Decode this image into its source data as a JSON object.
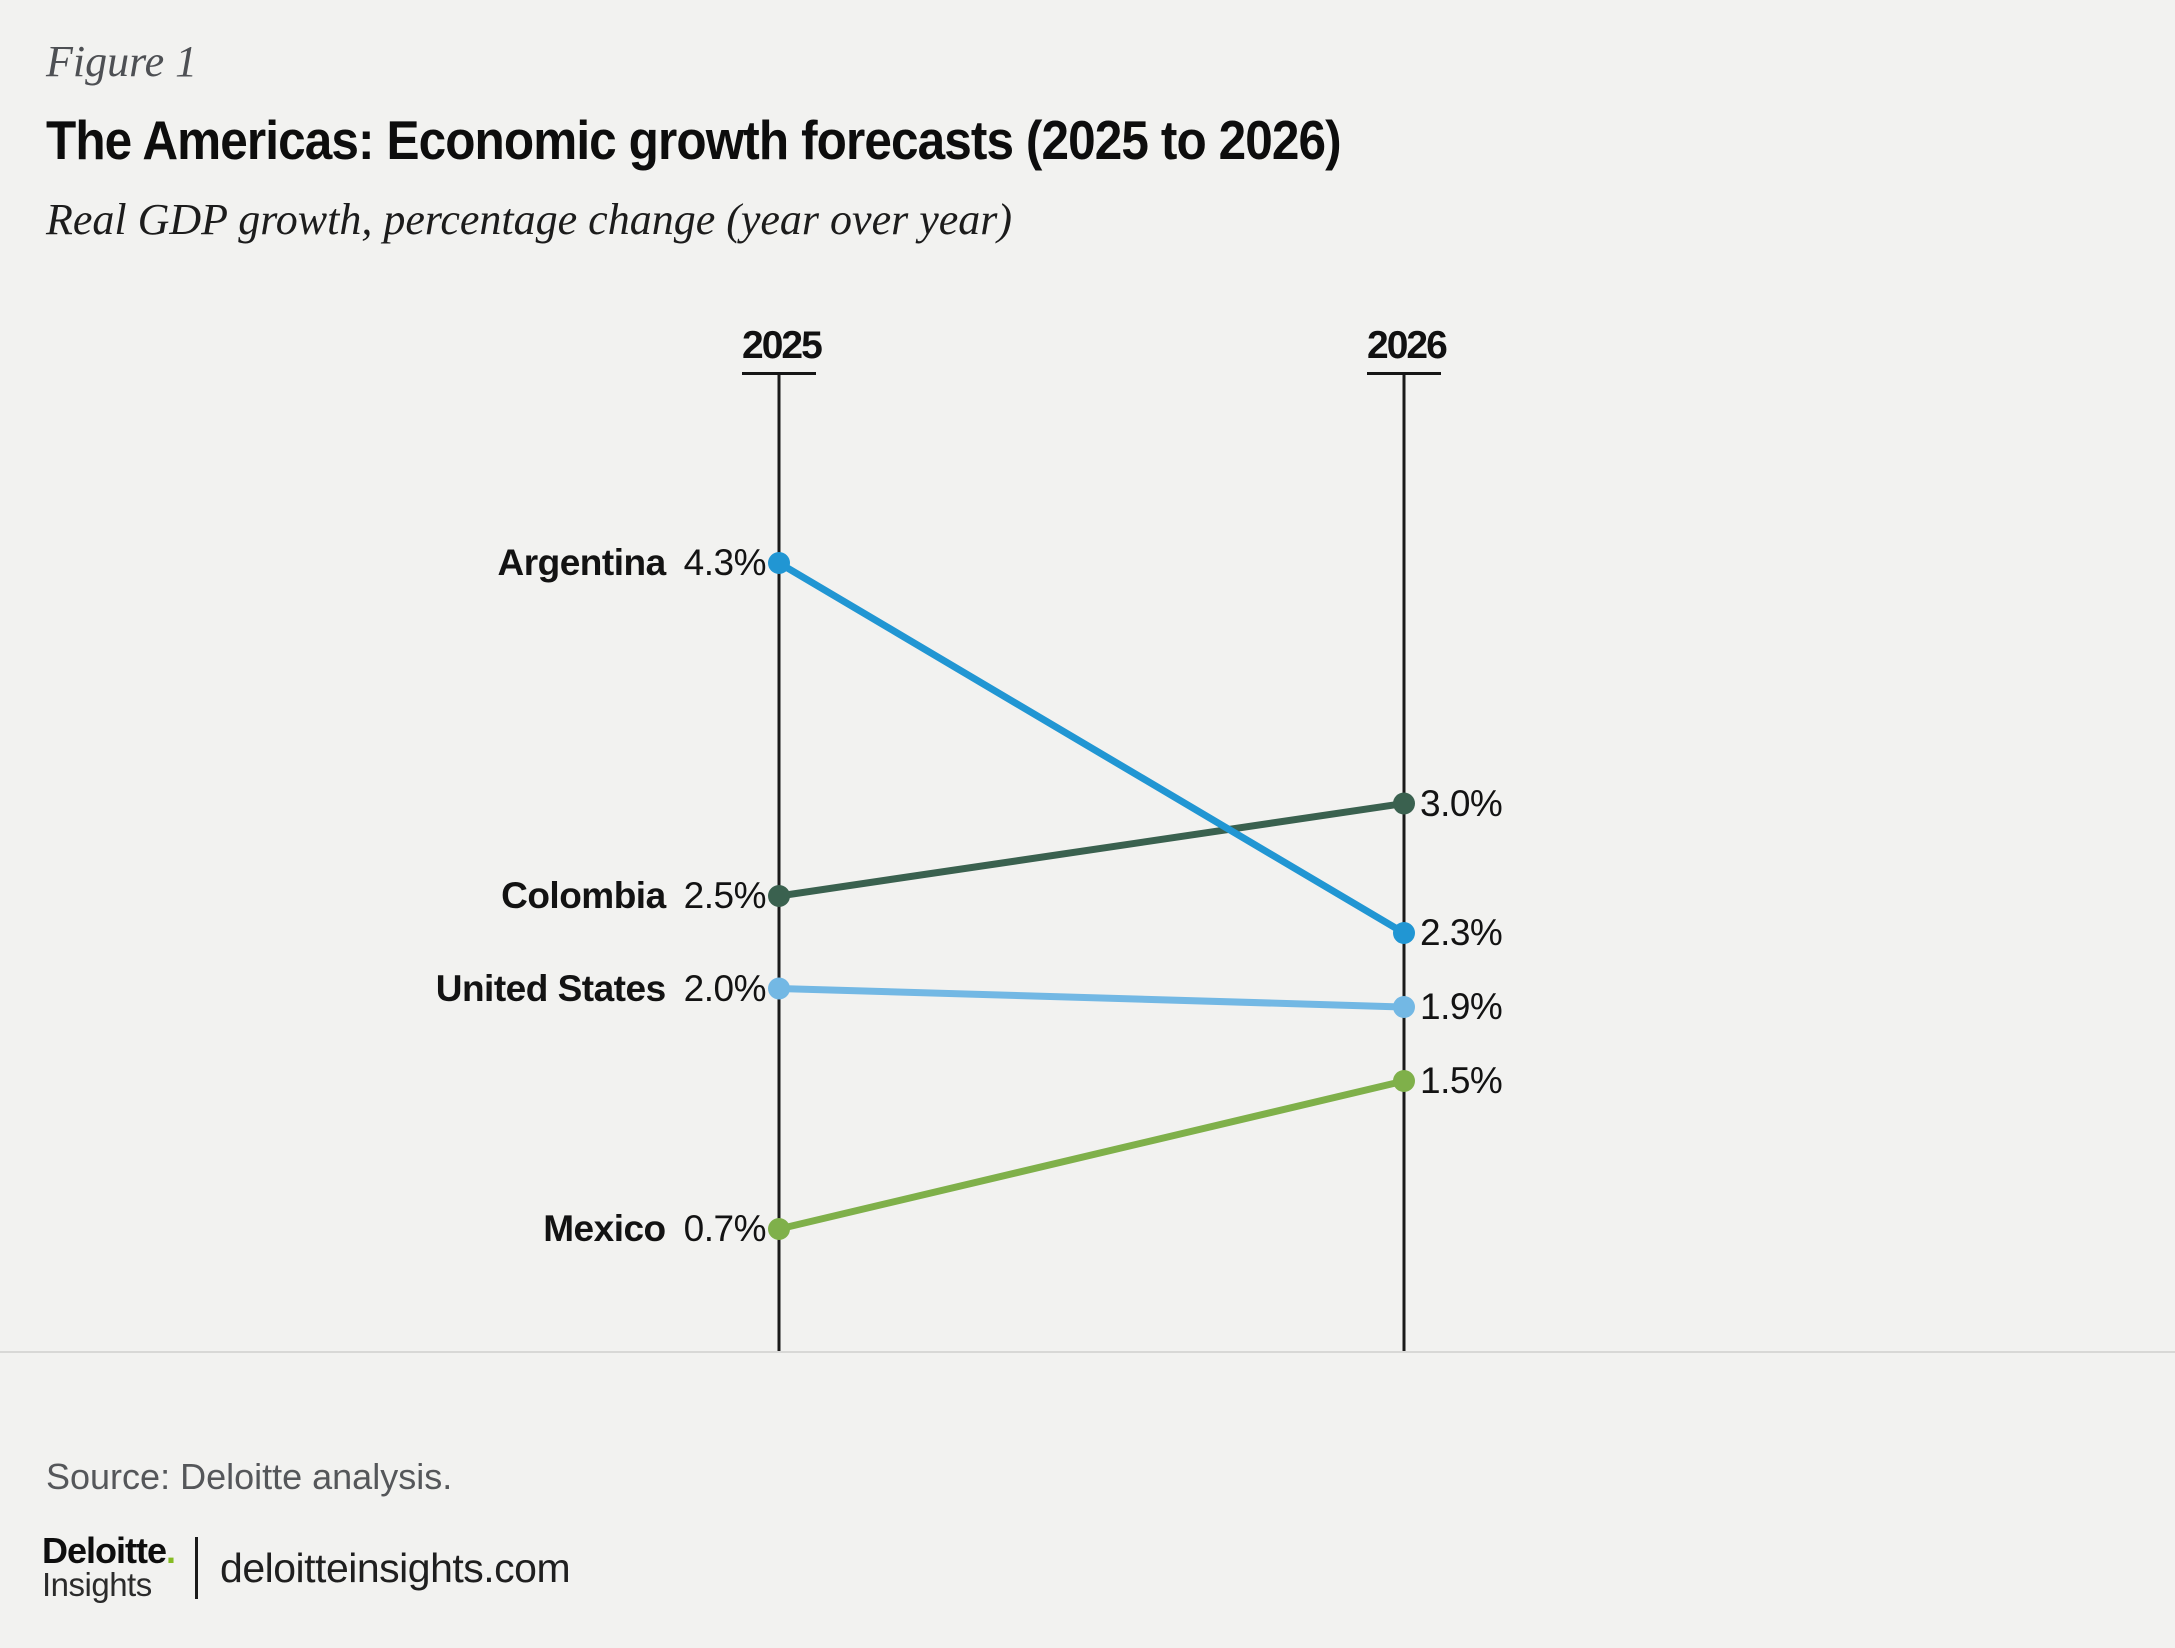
{
  "page": {
    "background_color": "#f2f2f0"
  },
  "header": {
    "figure_label": "Figure 1",
    "title": "The Americas: Economic growth forecasts (2025 to 2026)",
    "subtitle": "Real GDP growth, percentage change (year over year)"
  },
  "chart_data": {
    "type": "line",
    "variant": "slope-chart",
    "title": "The Americas: Economic growth forecasts (2025 to 2026)",
    "subtitle": "Real GDP growth, percentage change (year over year)",
    "columns": [
      "2025",
      "2026"
    ],
    "series": [
      {
        "name": "Argentina",
        "values": [
          4.3,
          2.3
        ],
        "labels": [
          "4.3%",
          "2.3%"
        ],
        "color": "#2196d3"
      },
      {
        "name": "Colombia",
        "values": [
          2.5,
          3.0
        ],
        "labels": [
          "2.5%",
          "3.0%"
        ],
        "color": "#3a614f"
      },
      {
        "name": "United States",
        "values": [
          2.0,
          1.9
        ],
        "labels": [
          "2.0%",
          "1.9%"
        ],
        "color": "#73b8e4"
      },
      {
        "name": "Mexico",
        "values": [
          0.7,
          1.5
        ],
        "labels": [
          "0.7%",
          "1.5%"
        ],
        "color": "#7fb04a"
      }
    ],
    "value_unit": "%",
    "ylim": [
      0,
      5.3
    ],
    "grid": false,
    "legend": "none",
    "axis_color": "#1a1a1a"
  },
  "footer": {
    "source": "Source: Deloitte analysis.",
    "logo": {
      "brand_word": "Deloitte",
      "brand_dot": ".",
      "brand_dot_color": "#86bc24",
      "sub": "Insights",
      "site": "deloitteinsights.com"
    }
  }
}
